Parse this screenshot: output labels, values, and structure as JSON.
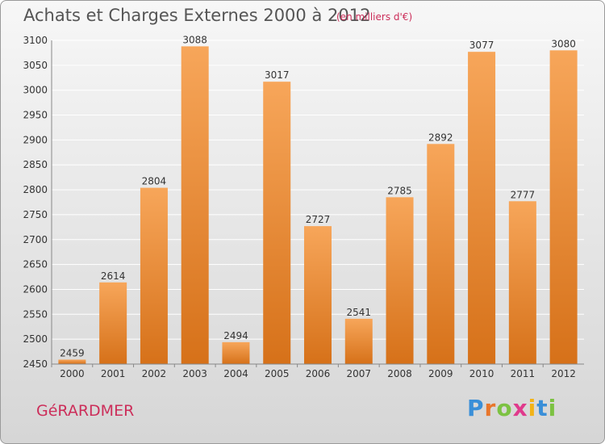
{
  "title": "Achats et Charges Externes 2000 à 2012",
  "subtitle": "(en milliers d'€)",
  "commune": "GéRARDMER",
  "logo": {
    "letters": [
      "P",
      "r",
      "o",
      "x",
      "i",
      "t",
      "i"
    ],
    "colors": [
      "#3a8fd8",
      "#e8762b",
      "#7cc242",
      "#e03a8c",
      "#f2b318",
      "#3a8fd8",
      "#7cc242"
    ]
  },
  "colors": {
    "bar_light": "#f7a65a",
    "bar_dark": "#d67119",
    "grid": "#ffffff",
    "text": "#333333"
  },
  "chart_data": {
    "type": "bar",
    "categories": [
      "2000",
      "2001",
      "2002",
      "2003",
      "2004",
      "2005",
      "2006",
      "2007",
      "2008",
      "2009",
      "2010",
      "2011",
      "2012"
    ],
    "values": [
      2459,
      2614,
      2804,
      3088,
      2494,
      3017,
      2727,
      2541,
      2785,
      2892,
      3077,
      2777,
      3080
    ],
    "ylim": [
      2450,
      3100
    ],
    "yticks": [
      2450,
      2500,
      2550,
      2600,
      2650,
      2700,
      2750,
      2800,
      2850,
      2900,
      2950,
      3000,
      3050,
      3100
    ],
    "grid": true,
    "xlabel": "",
    "ylabel": ""
  }
}
